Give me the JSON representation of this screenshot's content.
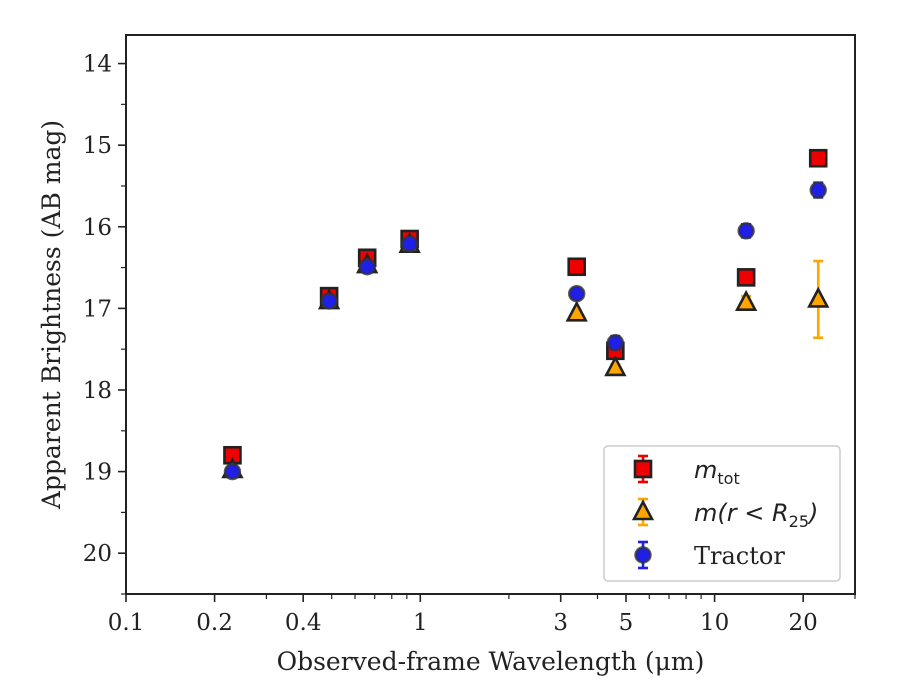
{
  "chart_data": {
    "type": "scatter",
    "xlabel": "Observed-frame Wavelength (μm)",
    "ylabel": "Apparent Brightness (AB mag)",
    "xscale": "log",
    "xlim": [
      0.1,
      30
    ],
    "ylim": [
      20.5,
      13.65
    ],
    "y_inverted": true,
    "xticks": [
      {
        "value": 0.1,
        "label": "0.1"
      },
      {
        "value": 0.2,
        "label": "0.2"
      },
      {
        "value": 0.4,
        "label": "0.4"
      },
      {
        "value": 1,
        "label": "1"
      },
      {
        "value": 3,
        "label": "3"
      },
      {
        "value": 5,
        "label": "5"
      },
      {
        "value": 10,
        "label": "10"
      },
      {
        "value": 20,
        "label": "20"
      }
    ],
    "yticks": [
      14,
      15,
      16,
      17,
      18,
      19,
      20
    ],
    "legend_position": "lower-right",
    "series": [
      {
        "name": "m_tot",
        "legend_main": "m",
        "legend_sub": "tot",
        "marker": "square",
        "color": "#ee0000",
        "errcolor": "#ee0000",
        "x": [
          0.23,
          0.49,
          0.66,
          0.92,
          3.4,
          4.6,
          12.8,
          22.5
        ],
        "y": [
          18.8,
          16.85,
          16.38,
          16.15,
          16.49,
          17.52,
          16.62,
          15.16
        ],
        "yerr": [
          0.05,
          0.03,
          0.03,
          0.03,
          0.02,
          0.05,
          0.06,
          0.04
        ]
      },
      {
        "name": "m(r < R25)",
        "legend_main": "m(r < R",
        "legend_sub": "25",
        "legend_tail": ")",
        "marker": "triangle",
        "color": "#ffa500",
        "errcolor": "#ffa500",
        "x": [
          0.23,
          0.49,
          0.66,
          0.92,
          3.4,
          4.6,
          12.8,
          22.5
        ],
        "y": [
          18.98,
          16.91,
          16.47,
          16.22,
          17.06,
          17.73,
          16.93,
          16.89
        ],
        "yerr": [
          0.03,
          0.02,
          0.02,
          0.02,
          0.03,
          0.04,
          0.08,
          0.47
        ]
      },
      {
        "name": "Tractor",
        "marker": "circle",
        "color": "#1f1fe6",
        "errcolor": "#1f1fe6",
        "x": [
          0.23,
          0.49,
          0.66,
          0.92,
          3.4,
          4.6,
          12.8,
          22.5
        ],
        "y": [
          19.0,
          16.91,
          16.49,
          16.21,
          16.82,
          17.42,
          16.05,
          15.55
        ],
        "yerr": [
          0.03,
          0.02,
          0.02,
          0.02,
          0.06,
          0.08,
          0.08,
          0.09
        ]
      }
    ]
  }
}
